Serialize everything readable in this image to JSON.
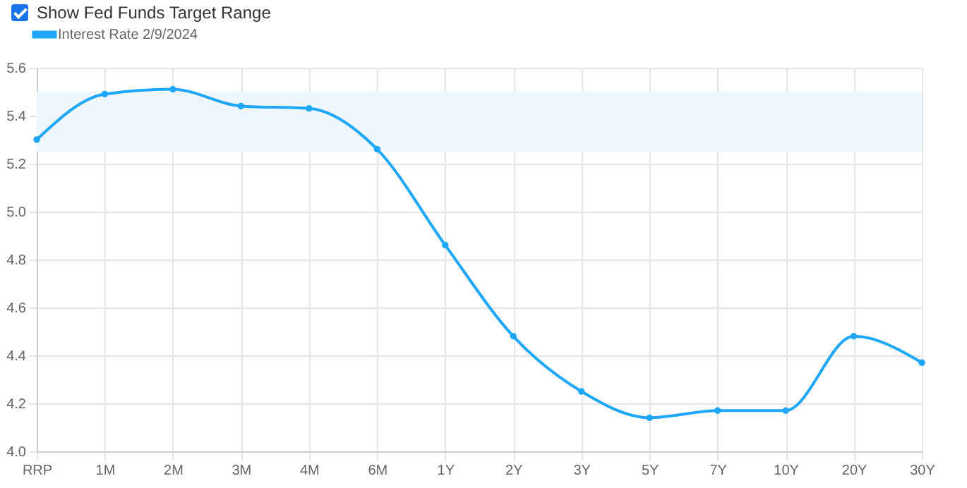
{
  "chart_data": {
    "type": "line",
    "categories": [
      "RRP",
      "1M",
      "2M",
      "3M",
      "4M",
      "6M",
      "1Y",
      "2Y",
      "3Y",
      "5Y",
      "7Y",
      "10Y",
      "20Y",
      "30Y"
    ],
    "series": [
      {
        "name": "Interest Rate 2/9/2024",
        "color": "#1ea7fd",
        "values": [
          5.3,
          5.49,
          5.51,
          5.44,
          5.43,
          5.26,
          4.86,
          4.48,
          4.25,
          4.14,
          4.17,
          4.17,
          4.48,
          4.37
        ]
      }
    ],
    "ylim": [
      4.0,
      5.6
    ],
    "yticks": [
      {
        "value": 4.0,
        "label": "4.0"
      },
      {
        "value": 4.2,
        "label": "4.2"
      },
      {
        "value": 4.4,
        "label": "4.4"
      },
      {
        "value": 4.6,
        "label": "4.6"
      },
      {
        "value": 4.8,
        "label": "4.8"
      },
      {
        "value": 5.0,
        "label": "5.0"
      },
      {
        "value": 5.2,
        "label": "5.2"
      },
      {
        "value": 5.4,
        "label": "5.4"
      },
      {
        "value": 5.6,
        "label": "5.6"
      }
    ],
    "bands": [
      {
        "axis": "y",
        "from": 5.25,
        "to": 5.5,
        "color": "#eef6fe"
      }
    ],
    "annotations": [
      "Show Fed Funds Target Range"
    ],
    "grid": true,
    "legend": "top",
    "marker": "circle",
    "line_style": "solid"
  }
}
